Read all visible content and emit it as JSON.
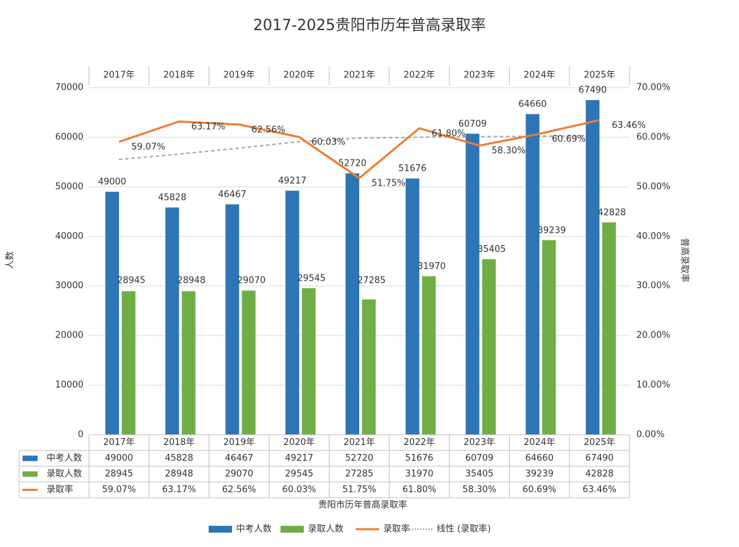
{
  "chart_data": {
    "type": "bar",
    "title": "2017-2025贵阳市历年普高录取率",
    "y_label": "人数",
    "y2_label": "普高录取率",
    "x_label": "贵阳市历年普高录取率",
    "categories": [
      "2017年",
      "2018年",
      "2019年",
      "2020年",
      "2021年",
      "2022年",
      "2023年",
      "2024年",
      "2025年"
    ],
    "series": [
      {
        "name": "中考人数",
        "type": "bar",
        "color": "#2e75b6",
        "values": [
          49000,
          45828,
          46467,
          49217,
          52720,
          51676,
          60709,
          64660,
          67490
        ]
      },
      {
        "name": "录取人数",
        "type": "bar",
        "color": "#70ad47",
        "values": [
          28945,
          28948,
          29070,
          29545,
          27285,
          31970,
          35405,
          39239,
          42828
        ]
      },
      {
        "name": "录取率",
        "type": "line",
        "axis": "y2",
        "color": "#ed7d31",
        "values": [
          59.07,
          63.17,
          62.56,
          60.03,
          51.75,
          61.8,
          58.3,
          60.69,
          63.46
        ],
        "value_labels": [
          "59.07%",
          "63.17%",
          "62.56%",
          "60.03%",
          "51.75%",
          "61.80%",
          "58.30%",
          "60.69%",
          "63.46%"
        ]
      },
      {
        "name": "线性 (录取率)",
        "type": "trendline",
        "axis": "y2",
        "color": "#a5a5a5",
        "values": [
          55.5,
          56.6,
          57.8,
          59.1,
          59.8,
          60.0,
          60.1,
          60.2,
          60.3
        ]
      }
    ],
    "ylim": [
      0,
      70000
    ],
    "yticks": [
      0,
      10000,
      20000,
      30000,
      40000,
      50000,
      60000,
      70000
    ],
    "y2lim": [
      0,
      70
    ],
    "y2ticks": [
      {
        "value": 0,
        "label": "0.00%"
      },
      {
        "value": 10,
        "label": "10.00%"
      },
      {
        "value": 20,
        "label": "20.00%"
      },
      {
        "value": 30,
        "label": "30.00%"
      },
      {
        "value": 40,
        "label": "40.00%"
      },
      {
        "value": 50,
        "label": "50.00%"
      },
      {
        "value": 60,
        "label": "60.00%"
      },
      {
        "value": 70,
        "label": "70.00%"
      }
    ],
    "grid": true,
    "data_table": true,
    "legend": "bottom"
  }
}
